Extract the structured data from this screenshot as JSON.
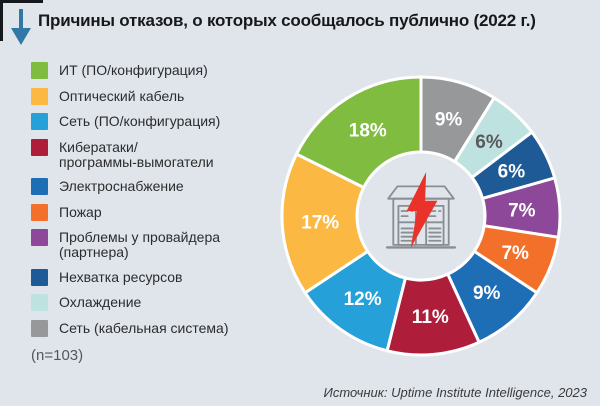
{
  "title": "Причины отказов, о которых сообщалось публично (2022 г.)",
  "colors": {
    "background": "#E0E5EB",
    "arrow": "#3178A6",
    "title_text": "#17181A",
    "corner_mark": "#16191C",
    "center_icon_stroke": "#8A8E92",
    "center_icon_bolt": "#E9332A"
  },
  "legend": {
    "items": [
      {
        "label": "ИТ (ПО/конфигурация)",
        "color": "#80BC3F"
      },
      {
        "label": "Оптический кабель",
        "color": "#FBB843"
      },
      {
        "label": "Сеть (ПО/конфигурация)",
        "color": "#25A0D8"
      },
      {
        "label": "Кибератаки/\nпрограммы-вымогатели",
        "color": "#AE1E3B"
      },
      {
        "label": "Электроснабжение",
        "color": "#1E6EB5"
      },
      {
        "label": "Пожар",
        "color": "#F3702B"
      },
      {
        "label": "Проблемы у провайдера\n(партнера)",
        "color": "#8E4899"
      },
      {
        "label": "Нехватка ресурсов",
        "color": "#1E5A96"
      },
      {
        "label": "Охлаждение",
        "color": "#BEE2DF"
      },
      {
        "label": "Сеть (кабельная система)",
        "color": "#96989A"
      }
    ],
    "note": "(n=103)"
  },
  "source": "Источник: Uptime Institute Intelligence, 2023",
  "chart_data": {
    "type": "pie",
    "subtype": "donut",
    "title": "Причины отказов, о которых сообщалось публично (2022 г.)",
    "unit": "%",
    "sample_size": 103,
    "start_angle_deg": 0,
    "direction": "clockwise",
    "inner_radius_ratio": 0.46,
    "center_icon": "data-center-outage",
    "segments": [
      {
        "label": "Сеть (кабельная система)",
        "value": 9,
        "display": "9%",
        "color": "#96989A",
        "text_color": "#FFFFFF"
      },
      {
        "label": "Охлаждение",
        "value": 6,
        "display": "6%",
        "color": "#BEE2DF",
        "text_color": "#58595B"
      },
      {
        "label": "Нехватка ресурсов",
        "value": 6,
        "display": "6%",
        "color": "#1E5A96",
        "text_color": "#FFFFFF"
      },
      {
        "label": "Проблемы у провайдера (партнера)",
        "value": 7,
        "display": "7%",
        "color": "#8E4899",
        "text_color": "#FFFFFF"
      },
      {
        "label": "Пожар",
        "value": 7,
        "display": "7%",
        "color": "#F3702B",
        "text_color": "#FFFFFF"
      },
      {
        "label": "Электроснабжение",
        "value": 9,
        "display": "9%",
        "color": "#1E6EB5",
        "text_color": "#FFFFFF"
      },
      {
        "label": "Кибератаки/программы-вымогатели",
        "value": 11,
        "display": "11%",
        "color": "#AE1E3B",
        "text_color": "#FFFFFF"
      },
      {
        "label": "Сеть (ПО/конфигурация)",
        "value": 12,
        "display": "12%",
        "color": "#25A0D8",
        "text_color": "#FFFFFF"
      },
      {
        "label": "Оптический кабель",
        "value": 17,
        "display": "17%",
        "color": "#FBB843",
        "text_color": "#FFFFFF"
      },
      {
        "label": "ИТ (ПО/конфигурация)",
        "value": 18,
        "display": "18%",
        "color": "#80BC3F",
        "text_color": "#FFFFFF"
      }
    ]
  }
}
